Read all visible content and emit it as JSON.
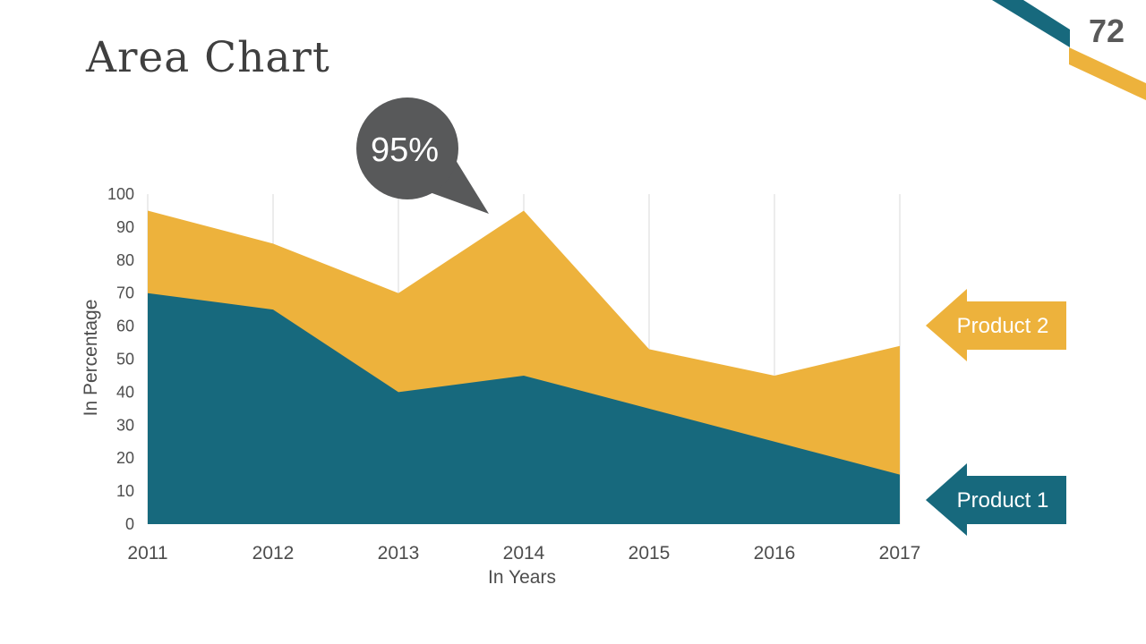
{
  "slide": {
    "title": "Area Chart",
    "page_number": "72"
  },
  "callout": {
    "label": "95%"
  },
  "arrows": {
    "product2_label": "Product 2",
    "product1_label": "Product 1"
  },
  "colors": {
    "teal": "#17697D",
    "gold": "#EDB23C",
    "callout_gray": "#58595A",
    "gridline": "#D9D9D9",
    "axis_text": "#4D4D4D",
    "title_text": "#3F3F3F",
    "page_number_text": "#595959"
  },
  "chart_data": {
    "type": "area",
    "categories": [
      "2011",
      "2012",
      "2013",
      "2014",
      "2015",
      "2016",
      "2017"
    ],
    "series": [
      {
        "name": "Product 2",
        "values": [
          95,
          85,
          70,
          95,
          53,
          45,
          54
        ],
        "color": "#EDB23C"
      },
      {
        "name": "Product 1",
        "values": [
          70,
          65,
          40,
          45,
          35,
          25,
          15
        ],
        "color": "#17697D"
      }
    ],
    "xlabel": "In Years",
    "ylabel": "In Percentage",
    "ylim": [
      0,
      100
    ],
    "ytick_step": 10,
    "grid": "vertical",
    "legend_position": "right-arrows",
    "annotation": {
      "text": "95%",
      "category": "2014",
      "value": 95
    }
  }
}
